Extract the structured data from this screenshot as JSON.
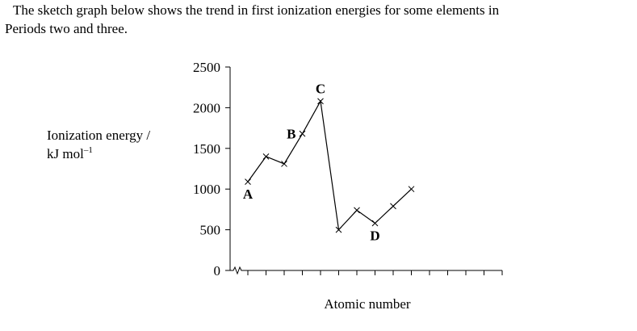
{
  "intro_lines": [
    "The sketch graph below shows the trend in first ionization energies for some elements in",
    "Periods two and three."
  ],
  "chart_data": {
    "type": "line",
    "ylabel_lines": [
      "Ionization energy /",
      "kJ mol"
    ],
    "ylabel_exponent": "–1",
    "xlabel": "Atomic number",
    "x": [
      1,
      2,
      3,
      4,
      5,
      6,
      7,
      8,
      9,
      10
    ],
    "series": [
      {
        "color": "#000000",
        "values": [
          1090,
          1400,
          1310,
          1680,
          2080,
          500,
          740,
          580,
          790,
          1000
        ]
      }
    ],
    "xlim": [
      0,
      15
    ],
    "xticks": [
      1,
      2,
      3,
      4,
      5,
      6,
      7,
      8,
      9,
      10,
      11,
      12,
      13,
      14,
      15
    ],
    "ylim": [
      0,
      2500
    ],
    "yticks": [
      0,
      500,
      1000,
      1500,
      2000,
      2500
    ],
    "point_labels": [
      {
        "label": "A",
        "x": 1,
        "position": "below"
      },
      {
        "label": "B",
        "x": 4,
        "position": "left"
      },
      {
        "label": "C",
        "x": 5,
        "position": "above"
      },
      {
        "label": "D",
        "x": 8,
        "position": "below"
      }
    ]
  }
}
